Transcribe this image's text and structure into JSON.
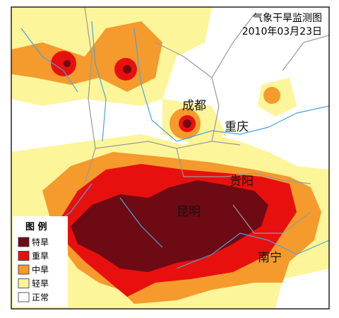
{
  "title": "气象干旱监测图",
  "date": "2010年03月23日",
  "cities": [
    "成都",
    "重庆",
    "贵阳",
    "昆明",
    "南宁"
  ],
  "legend": {
    "title": "图 例",
    "items": [
      {
        "name": "特旱",
        "color": "#6e0a14"
      },
      {
        "name": "重旱",
        "color": "#e8100e"
      },
      {
        "name": "中旱",
        "color": "#f59a2c"
      },
      {
        "name": "轻旱",
        "color": "#fdf59a"
      },
      {
        "name": "正常",
        "color": "#ffffff"
      }
    ]
  }
}
